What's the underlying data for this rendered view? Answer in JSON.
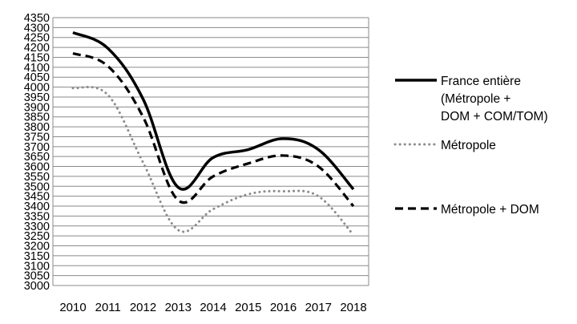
{
  "chart_data": {
    "type": "line",
    "title": "",
    "xlabel": "",
    "ylabel": "",
    "x": [
      "2010",
      "2011",
      "2012",
      "2013",
      "2014",
      "2015",
      "2016",
      "2017",
      "2018"
    ],
    "ylim": [
      3000,
      4350
    ],
    "y_ticks": [
      3000,
      3050,
      3100,
      3150,
      3200,
      3250,
      3300,
      3350,
      3400,
      3450,
      3500,
      3550,
      3600,
      3650,
      3700,
      3750,
      3800,
      3850,
      3900,
      3950,
      4000,
      4050,
      4100,
      4150,
      4200,
      4250,
      4300,
      4350
    ],
    "grid": "horizontal",
    "legend_position": "right",
    "series": [
      {
        "name_lines": [
          "France entière",
          "(Métropole +",
          "DOM + COM/TOM)"
        ],
        "style": "solid",
        "color": "#000000",
        "values": [
          4275,
          4195,
          3940,
          3495,
          3645,
          3685,
          3740,
          3685,
          3485
        ]
      },
      {
        "name_lines": [
          "Métropole"
        ],
        "style": "dotted",
        "color": "#8c8c8c",
        "values": [
          3995,
          3960,
          3620,
          3280,
          3385,
          3460,
          3475,
          3450,
          3255
        ]
      },
      {
        "name_lines": [
          "Métropole + DOM"
        ],
        "style": "dashed",
        "color": "#000000",
        "values": [
          4170,
          4105,
          3850,
          3430,
          3550,
          3615,
          3655,
          3600,
          3400
        ]
      }
    ]
  }
}
